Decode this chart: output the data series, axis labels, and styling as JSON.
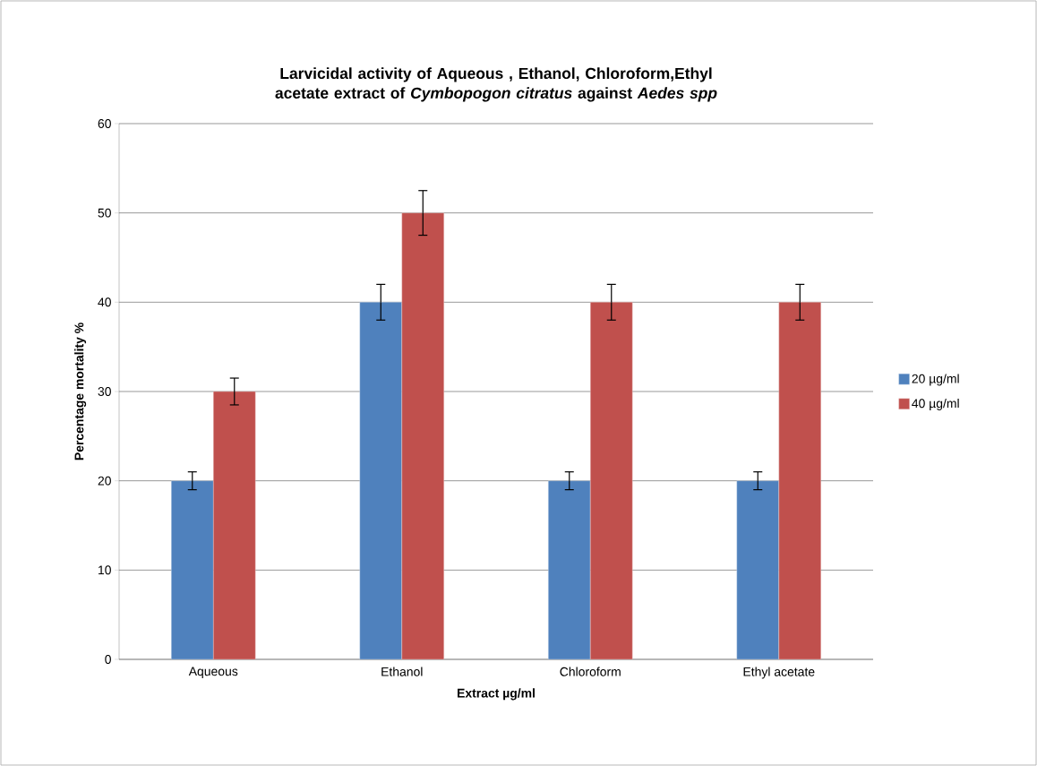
{
  "chart_data": {
    "type": "bar",
    "title": "Larvicidal activity of Aqueous , Ethanol, Chloroform,Ethyl acetate extract of *Cymbopogon citratus*  against *Aedes spp*",
    "xlabel": "Extract   µg/ml",
    "ylabel": "Percentage mortality %",
    "categories": [
      "Aqueous",
      "Ethanol",
      "Chloroform",
      "Ethyl acetate"
    ],
    "series": [
      {
        "name": "20 µg/ml",
        "color": "#4f81bd",
        "values": [
          20,
          40,
          20,
          20
        ],
        "errors": [
          1,
          2,
          1,
          1
        ]
      },
      {
        "name": "40 µg/ml",
        "color": "#c0504d",
        "values": [
          30,
          50,
          40,
          40
        ],
        "errors": [
          1.5,
          2.5,
          2,
          2
        ]
      }
    ],
    "ylim": [
      0,
      60
    ],
    "yticks": [
      0,
      10,
      20,
      30,
      40,
      50,
      60
    ],
    "grid": "y",
    "legend": "right"
  }
}
